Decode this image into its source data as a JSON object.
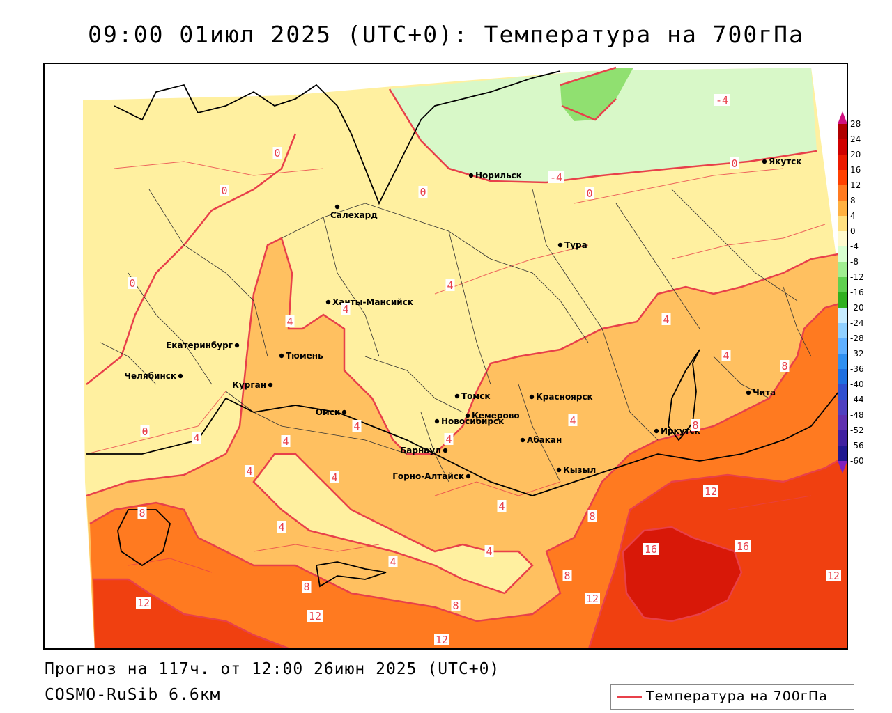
{
  "header": {
    "title": "09:00 01июл 2025 (UTC+0): Температура на 700гПа"
  },
  "footer": {
    "forecast_line": "Прогноз на 117ч. от 12:00 26июн 2025 (UTC+0)",
    "model_line": "COSMO-RuSib 6.6км"
  },
  "legend": {
    "label": "Температура на 700гПа",
    "line_color": "#e8404a"
  },
  "colors": {
    "contour": "#e8404a",
    "border": "#000000",
    "band_-8_-4": "#b8f0b0",
    "band_-4_0": "#d8f8c8",
    "band_0_4": "#fff0a0",
    "band_4_8": "#ffc060",
    "band_8_12": "#ff7a20",
    "band_12_16": "#f04010",
    "band_16_20": "#d81808"
  },
  "colorbar": {
    "labels": [
      "28",
      "24",
      "20",
      "16",
      "12",
      "8",
      "4",
      "0",
      "-4",
      "-8",
      "-12",
      "-16",
      "-20",
      "-24",
      "-28",
      "-32",
      "-36",
      "-40",
      "-44",
      "-48",
      "-52",
      "-56",
      "-60"
    ],
    "colors": [
      "#b00000",
      "#d00000",
      "#ec1a00",
      "#ff4000",
      "#ff7a20",
      "#ffb040",
      "#ffe080",
      "#fffacd",
      "#d8ffd0",
      "#a0ee90",
      "#60d050",
      "#30b020",
      "#c8ecff",
      "#90d0ff",
      "#60b0ff",
      "#3090f0",
      "#2070e0",
      "#3050d0",
      "#5040c0",
      "#6030b0",
      "#4020a0",
      "#201890"
    ],
    "top_arrow_color": "#d01080",
    "bottom_arrow_color": "#8020c0"
  },
  "cities": [
    {
      "name": "Якутск"
    },
    {
      "name": "Норильск"
    },
    {
      "name": "Салехард"
    },
    {
      "name": "Тура"
    },
    {
      "name": "Ханты-Мансийск"
    },
    {
      "name": "Екатеринбург"
    },
    {
      "name": "Тюмень"
    },
    {
      "name": "Челябинск"
    },
    {
      "name": "Курган"
    },
    {
      "name": "Омск"
    },
    {
      "name": "Томск"
    },
    {
      "name": "Красноярск"
    },
    {
      "name": "Новосибирск"
    },
    {
      "name": "Кемерово"
    },
    {
      "name": "Барнаул"
    },
    {
      "name": "Абакан"
    },
    {
      "name": "Горно-Алтайск"
    },
    {
      "name": "Кызыл"
    },
    {
      "name": "Иркутск"
    },
    {
      "name": "Чита"
    }
  ],
  "contour_labels": [
    "-4",
    "-4",
    "0",
    "0",
    "0",
    "0",
    "0",
    "0",
    "0",
    "4",
    "4",
    "4",
    "4",
    "4",
    "4",
    "4",
    "4",
    "4",
    "4",
    "4",
    "4",
    "4",
    "4",
    "4",
    "4",
    "8",
    "8",
    "8",
    "8",
    "8",
    "8",
    "8",
    "12",
    "12",
    "12",
    "12",
    "12",
    "12",
    "16",
    "16"
  ]
}
